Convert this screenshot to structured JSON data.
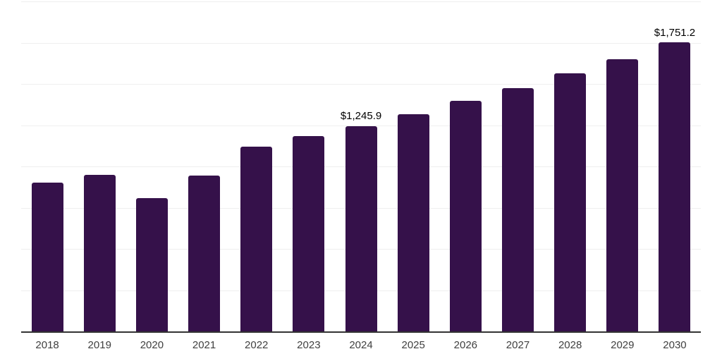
{
  "chart_data": {
    "type": "bar",
    "title": "",
    "xlabel": "",
    "ylabel": "",
    "categories": [
      "2018",
      "2019",
      "2020",
      "2021",
      "2022",
      "2023",
      "2024",
      "2025",
      "2026",
      "2027",
      "2028",
      "2029",
      "2030"
    ],
    "values": [
      901,
      947,
      808,
      944,
      1118,
      1183,
      1245.9,
      1316,
      1396,
      1473,
      1566,
      1651,
      1751.2
    ],
    "bar_labels": [
      "",
      "",
      "",
      "",
      "",
      "",
      "$1,245.9",
      "",
      "",
      "",
      "",
      "",
      "$1,751.2"
    ],
    "ylim": [
      0,
      2000
    ],
    "gridline_step": 250,
    "grid": "horizontal",
    "legend": "none",
    "colors": {
      "bar": "#35114A",
      "gridline": "#EFEFEF",
      "axis": "#333333",
      "tick_text": "#404040",
      "data_label_text": "#000000"
    }
  }
}
